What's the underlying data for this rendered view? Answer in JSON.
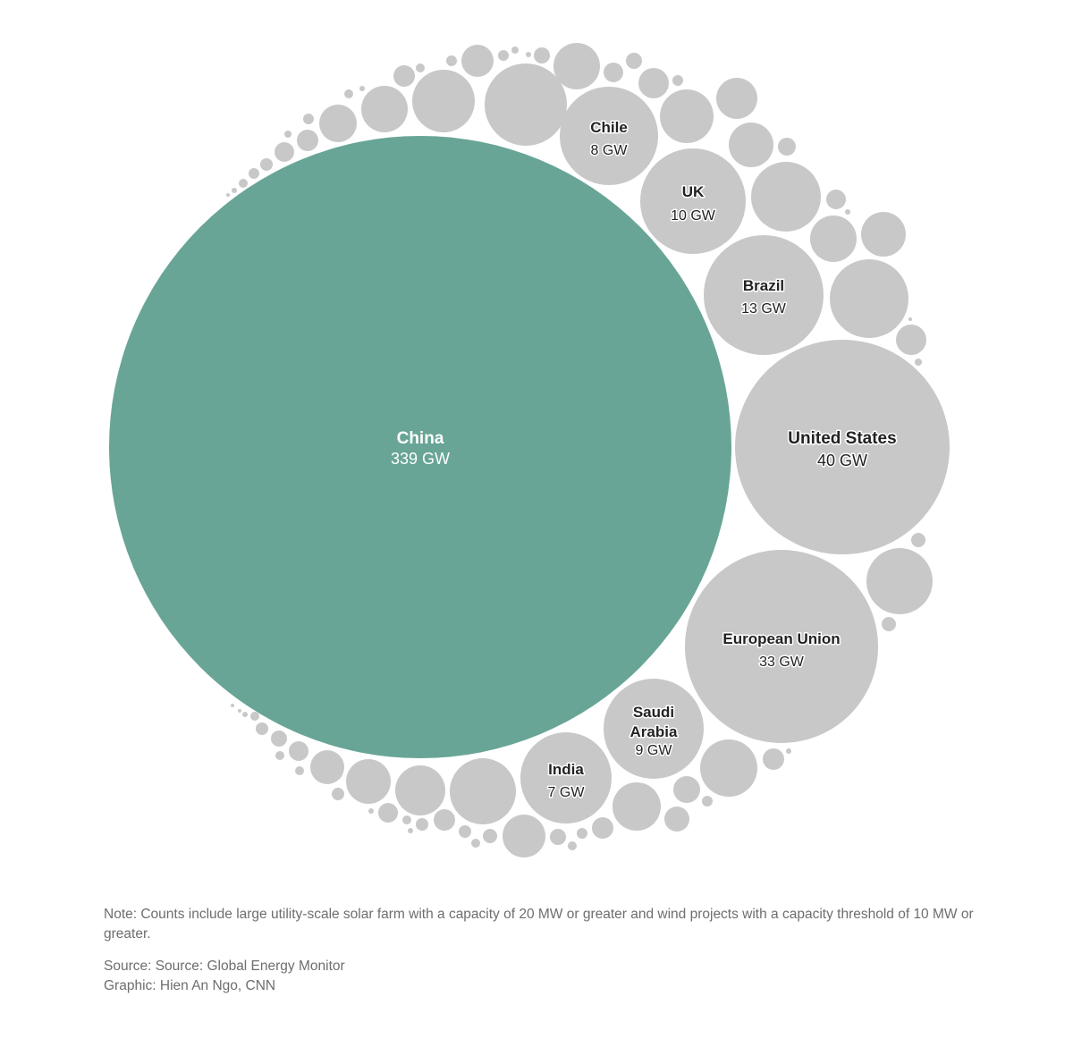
{
  "chart_data": {
    "type": "bubble",
    "unit": "GW",
    "colors": {
      "highlight": "#68a596",
      "other": "#c8c8c8",
      "label_text": "#222222",
      "highlight_text": "#ffffff"
    },
    "bubbles": [
      {
        "name": "China",
        "value": 339,
        "label": "339 GW",
        "highlight": true
      },
      {
        "name": "United States",
        "value": 40,
        "label": "40 GW"
      },
      {
        "name": "European Union",
        "value": 33,
        "label": "33 GW"
      },
      {
        "name": "Brazil",
        "value": 13,
        "label": "13 GW"
      },
      {
        "name": "UK",
        "value": 10,
        "label": "10 GW"
      },
      {
        "name": "Saudi Arabia",
        "value": 9,
        "label": "9 GW"
      },
      {
        "name": "Chile",
        "value": 8,
        "label": "8 GW"
      },
      {
        "name": "India",
        "value": 7,
        "label": "7 GW"
      }
    ]
  },
  "notes": {
    "note": "Note: Counts include large utility-scale solar farm with a capacity of 20 MW or greater and wind projects with a capacity threshold of 10 MW or greater.",
    "source": "Source: Source: Global Energy Monitor",
    "graphic": "Graphic: Hien An Ngo, CNN"
  }
}
